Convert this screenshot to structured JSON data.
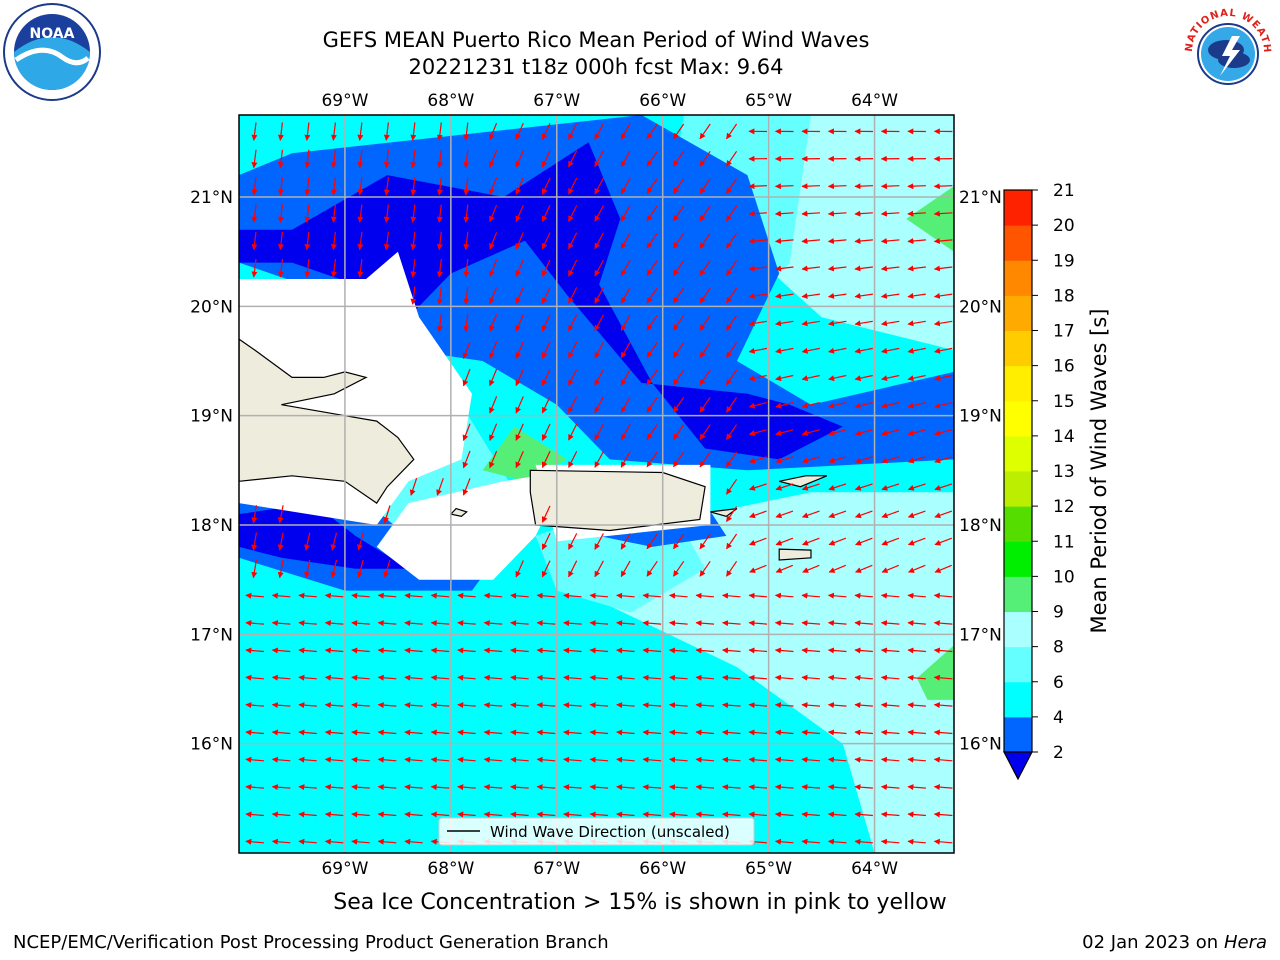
{
  "title": {
    "line1": "GEFS MEAN Puerto Rico Mean Period of Wind Waves",
    "line2": "20221231 t18z 000h fcst   Max: 9.64"
  },
  "map": {
    "lon_range": [
      -70,
      -63.25
    ],
    "lat_range": [
      15,
      21.75
    ],
    "lon_ticks": [
      {
        "value": -69,
        "label": "69°W"
      },
      {
        "value": -68,
        "label": "68°W"
      },
      {
        "value": -67,
        "label": "67°W"
      },
      {
        "value": -66,
        "label": "66°W"
      },
      {
        "value": -65,
        "label": "65°W"
      },
      {
        "value": -64,
        "label": "64°W"
      }
    ],
    "lat_ticks": [
      {
        "value": 21,
        "label": "21°N"
      },
      {
        "value": 20,
        "label": "20°N"
      },
      {
        "value": 19,
        "label": "19°N"
      },
      {
        "value": 18,
        "label": "18°N"
      },
      {
        "value": 17,
        "label": "17°N"
      },
      {
        "value": 16,
        "label": "16°N"
      }
    ],
    "legend_label": "Wind Wave Direction (unscaled)",
    "arrow_color": "#ff0000",
    "land_color": "#eeecdc"
  },
  "colorbar": {
    "label": "Mean Period of Wind Waves [s]",
    "levels": [
      2,
      4,
      6,
      8,
      9,
      10,
      11,
      12,
      13,
      14,
      15,
      16,
      17,
      18,
      19,
      20,
      21
    ],
    "colors": [
      "#0066ff",
      "#00ffff",
      "#66ffff",
      "#aaffff",
      "#55ee77",
      "#00ee00",
      "#55dd00",
      "#bbee00",
      "#ddff00",
      "#ffff00",
      "#ffee00",
      "#ffcc00",
      "#ffaa00",
      "#ff8800",
      "#ff5500",
      "#ff2200"
    ],
    "under_color": "#0000ee"
  },
  "footer": {
    "ice_note": "Sea Ice Concentration > 15% is shown in pink to yellow",
    "credit_left": "NCEP/EMC/Verification Post Processing Product Generation Branch",
    "credit_date": "02 Jan 2023 on ",
    "credit_host": "Hera"
  },
  "logos": {
    "noaa": "NOAA",
    "nws_text": "NATIONAL WEATHER SERVICE"
  }
}
